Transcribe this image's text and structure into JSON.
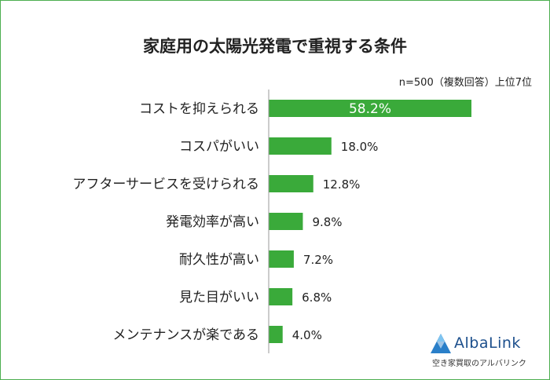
{
  "chart_data": {
    "type": "bar",
    "orientation": "horizontal",
    "title": "家庭用の太陽光発電で重視する条件",
    "note": "n=500（複数回答）上位7位",
    "categories": [
      "コストを抑えられる",
      "コスパがいい",
      "アフターサービスを受けられる",
      "発電効率が高い",
      "耐久性が高い",
      "見た目がいい",
      "メンテナンスが楽である"
    ],
    "values": [
      58.2,
      18.0,
      12.8,
      9.8,
      7.2,
      6.8,
      4.0
    ],
    "value_labels": [
      "58.2%",
      "18.0%",
      "12.8%",
      "9.8%",
      "7.2%",
      "6.8%",
      "4.0%"
    ],
    "unit": "%",
    "xlim": [
      0,
      100
    ],
    "bar_color": "#3aaa3a",
    "axis_color": "#999999"
  },
  "brand": {
    "name": "AlbaLink",
    "tagline": "空き家買取のアルバリンク",
    "color": "#1c4f8c"
  }
}
